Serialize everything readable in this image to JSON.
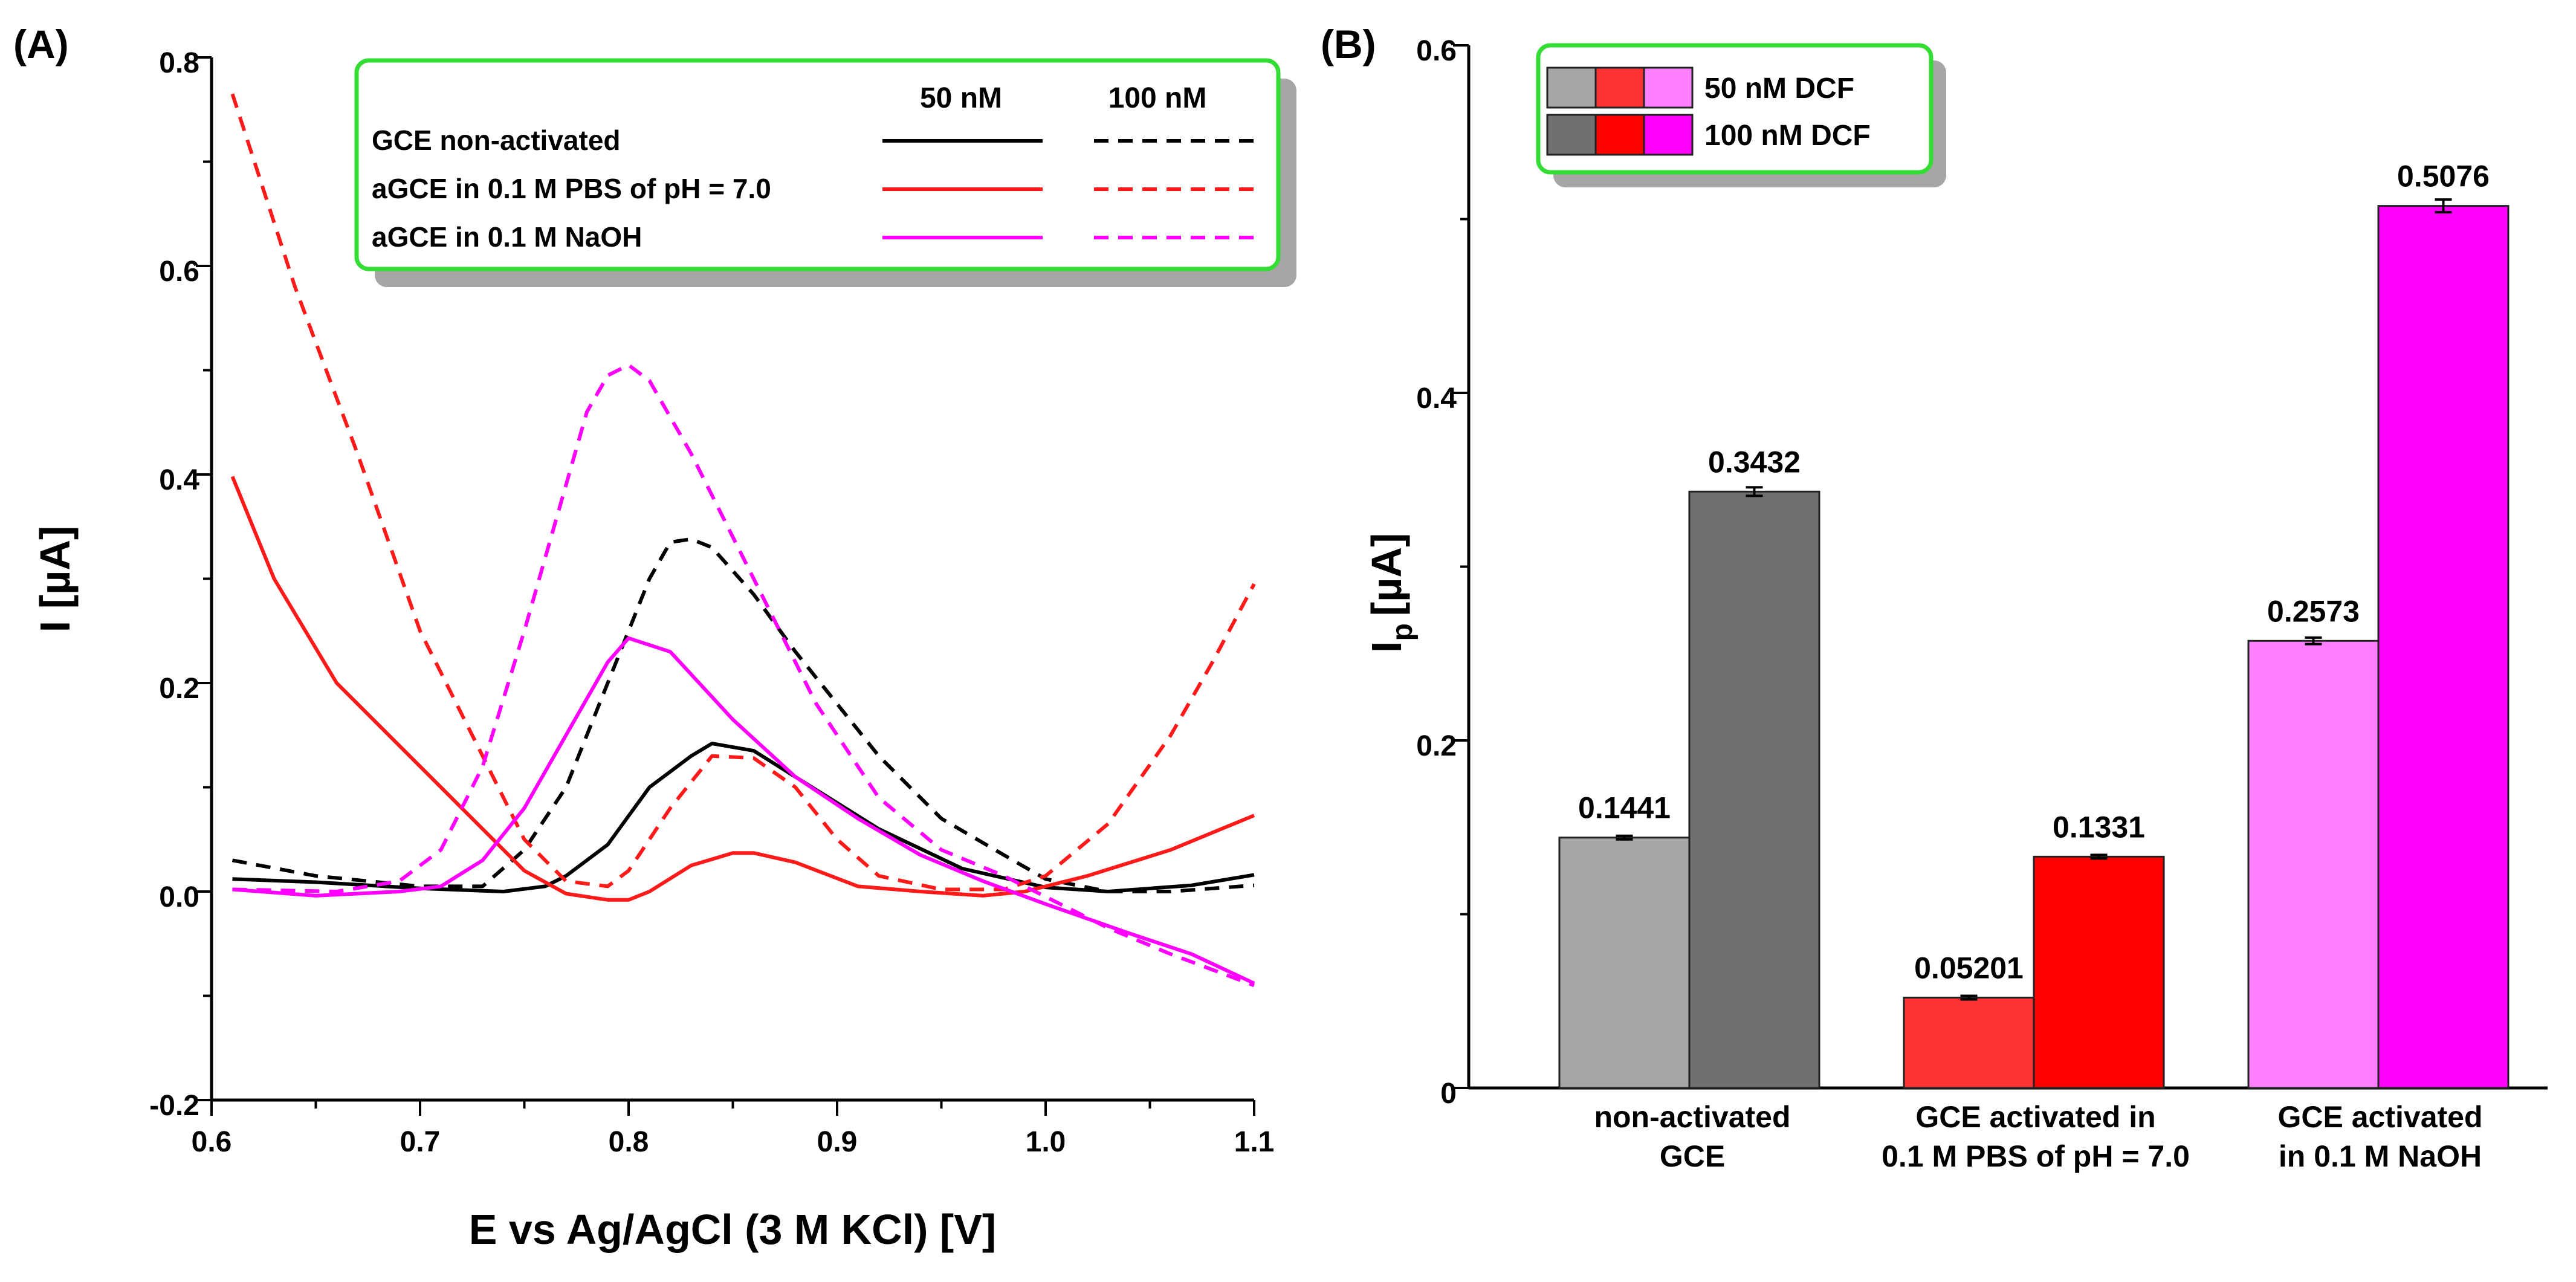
{
  "chart_data": [
    {
      "type": "line",
      "panel_label": "(A)",
      "xlabel": "E vs Ag/AgCl (3 M KCl) [V]",
      "ylabel": "I [µA]",
      "xlim": [
        0.6,
        1.1
      ],
      "ylim": [
        -0.2,
        0.8
      ],
      "x_ticks": [
        "0.6",
        "0.7",
        "0.8",
        "0.9",
        "1.0",
        "1.1"
      ],
      "y_ticks": [
        "-0.2",
        "0.0",
        "0.2",
        "0.4",
        "0.6",
        "0.8"
      ],
      "legend": {
        "header_solid": "50 nM",
        "header_dashed": "100 nM",
        "entries": [
          "GCE non-activated",
          "aGCE in 0.1 M PBS of pH = 7.0",
          "aGCE in 0.1 M NaOH"
        ],
        "position": "top-right"
      },
      "series": [
        {
          "name": "GCE non-activated 50 nM",
          "color": "#000000",
          "dash": false,
          "x": [
            0.61,
            0.65,
            0.7,
            0.74,
            0.76,
            0.77,
            0.79,
            0.81,
            0.83,
            0.84,
            0.86,
            0.88,
            0.92,
            0.96,
            1.0,
            1.03,
            1.07,
            1.1
          ],
          "y": [
            0.012,
            0.009,
            0.003,
            0.0,
            0.005,
            0.015,
            0.045,
            0.1,
            0.13,
            0.142,
            0.135,
            0.11,
            0.06,
            0.022,
            0.004,
            0.0,
            0.006,
            0.016
          ]
        },
        {
          "name": "GCE non-activated 100 nM",
          "color": "#000000",
          "dash": true,
          "x": [
            0.61,
            0.65,
            0.7,
            0.73,
            0.75,
            0.77,
            0.79,
            0.8,
            0.81,
            0.82,
            0.83,
            0.84,
            0.86,
            0.88,
            0.9,
            0.92,
            0.95,
            0.98,
            1.0,
            1.03,
            1.06,
            1.1
          ],
          "y": [
            0.03,
            0.015,
            0.005,
            0.005,
            0.04,
            0.1,
            0.2,
            0.25,
            0.3,
            0.335,
            0.338,
            0.33,
            0.285,
            0.23,
            0.18,
            0.13,
            0.07,
            0.035,
            0.012,
            0.0,
            0.0,
            0.006
          ]
        },
        {
          "name": "aGCE in 0.1 M PBS of pH = 7.0 50 nM",
          "color": "#ff1a1a",
          "dash": false,
          "x": [
            0.61,
            0.63,
            0.66,
            0.7,
            0.73,
            0.75,
            0.77,
            0.79,
            0.8,
            0.81,
            0.83,
            0.85,
            0.86,
            0.88,
            0.91,
            0.94,
            0.97,
            0.99,
            1.02,
            1.06,
            1.1
          ],
          "y": [
            0.398,
            0.3,
            0.2,
            0.12,
            0.06,
            0.02,
            -0.002,
            -0.008,
            -0.008,
            0.0,
            0.025,
            0.037,
            0.037,
            0.028,
            0.005,
            0.0,
            -0.004,
            0.0,
            0.015,
            0.04,
            0.073
          ]
        },
        {
          "name": "aGCE in 0.1 M PBS of pH = 7.0 100 nM",
          "color": "#ff1a1a",
          "dash": true,
          "x": [
            0.61,
            0.64,
            0.67,
            0.7,
            0.73,
            0.75,
            0.77,
            0.79,
            0.8,
            0.82,
            0.84,
            0.86,
            0.88,
            0.9,
            0.92,
            0.95,
            0.98,
            1.0,
            1.03,
            1.06,
            1.08,
            1.1
          ],
          "y": [
            0.765,
            0.58,
            0.42,
            0.25,
            0.13,
            0.05,
            0.01,
            0.005,
            0.02,
            0.08,
            0.13,
            0.128,
            0.1,
            0.05,
            0.015,
            0.002,
            0.002,
            0.015,
            0.065,
            0.15,
            0.22,
            0.295
          ]
        },
        {
          "name": "aGCE in 0.1 M NaOH 50 nM",
          "color": "#ff00ff",
          "dash": false,
          "x": [
            0.61,
            0.65,
            0.69,
            0.71,
            0.73,
            0.75,
            0.77,
            0.79,
            0.8,
            0.82,
            0.85,
            0.88,
            0.91,
            0.94,
            0.97,
            1.0,
            1.04,
            1.07,
            1.1
          ],
          "y": [
            0.002,
            -0.004,
            0.0,
            0.005,
            0.03,
            0.08,
            0.15,
            0.22,
            0.243,
            0.23,
            0.165,
            0.11,
            0.07,
            0.035,
            0.01,
            -0.012,
            -0.04,
            -0.06,
            -0.088
          ]
        },
        {
          "name": "aGCE in 0.1 M NaOH 100 nM",
          "color": "#ff00ff",
          "dash": true,
          "x": [
            0.61,
            0.66,
            0.69,
            0.71,
            0.73,
            0.75,
            0.77,
            0.78,
            0.79,
            0.8,
            0.81,
            0.83,
            0.86,
            0.89,
            0.92,
            0.95,
            0.98,
            1.0,
            1.03,
            1.06,
            1.1
          ],
          "y": [
            0.002,
            0.0,
            0.01,
            0.04,
            0.12,
            0.25,
            0.39,
            0.46,
            0.495,
            0.505,
            0.49,
            0.42,
            0.3,
            0.18,
            0.09,
            0.04,
            0.015,
            -0.005,
            -0.035,
            -0.06,
            -0.09
          ]
        }
      ]
    },
    {
      "type": "bar",
      "panel_label": "(B)",
      "ylabel_main": "I",
      "ylabel_sub": "p",
      "ylabel_unit": "[µA]",
      "ylim": [
        0,
        0.6
      ],
      "y_ticks": [
        "0",
        "0.2",
        "0.4",
        "0.6"
      ],
      "legend": {
        "entries": [
          "50 nM DCF",
          "100 nM DCF"
        ],
        "position": "top-left"
      },
      "groups": [
        {
          "label_lines": [
            "non-activated",
            "GCE"
          ],
          "bars": [
            {
              "series": "50 nM DCF",
              "value": 0.1441,
              "label": "0.1441",
              "color": "#a6a6a6"
            },
            {
              "series": "100 nM DCF",
              "value": 0.3432,
              "label": "0.3432",
              "color": "#707070"
            }
          ]
        },
        {
          "label_lines": [
            "GCE activated in",
            "0.1 M PBS of pH = 7.0"
          ],
          "bars": [
            {
              "series": "50 nM DCF",
              "value": 0.05201,
              "label": "0.05201",
              "color": "#ff3333"
            },
            {
              "series": "100 nM DCF",
              "value": 0.1331,
              "label": "0.1331",
              "color": "#ff0000"
            }
          ]
        },
        {
          "label_lines": [
            "GCE activated",
            "in 0.1 M NaOH"
          ],
          "bars": [
            {
              "series": "50 nM DCF",
              "value": 0.2573,
              "label": "0.2573",
              "color": "#ff80ff"
            },
            {
              "series": "100 nM DCF",
              "value": 0.5076,
              "label": "0.5076",
              "color": "#ff00ff"
            }
          ]
        }
      ]
    }
  ]
}
